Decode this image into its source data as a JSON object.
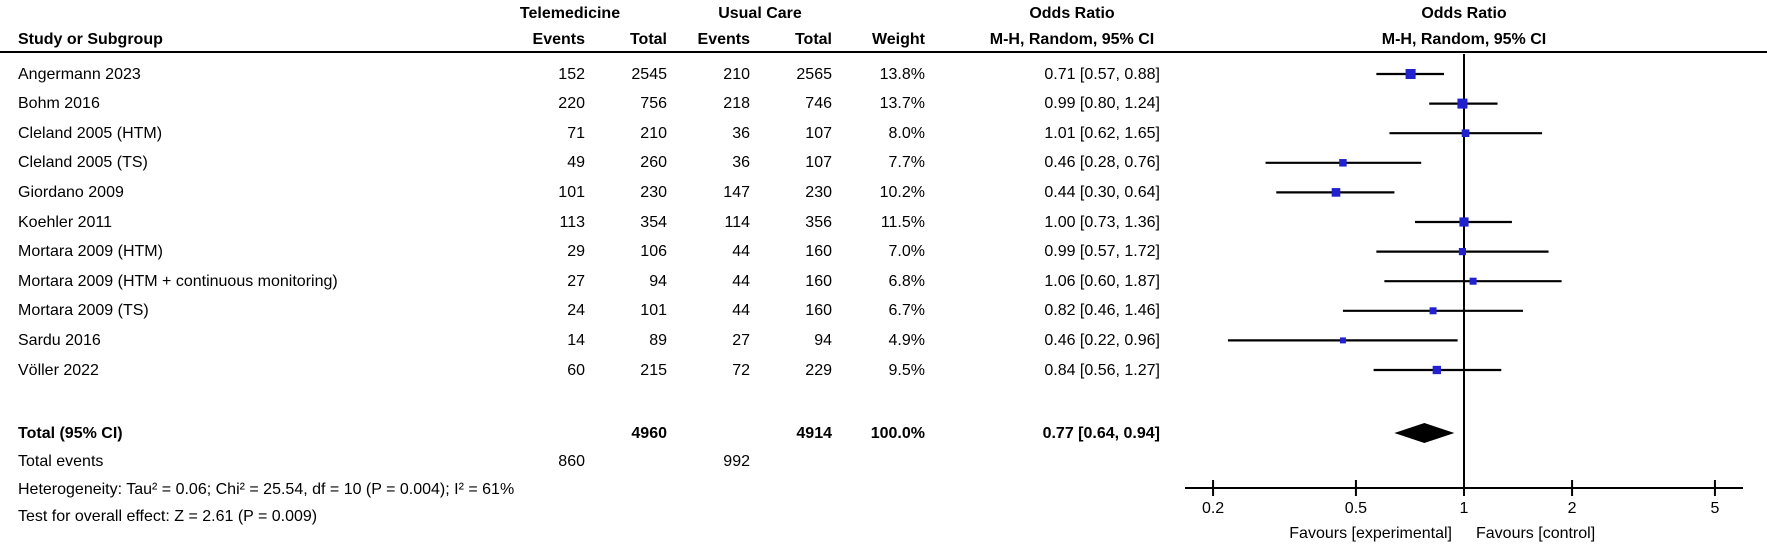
{
  "header": {
    "group1": "Telemedicine",
    "group2": "Usual Care",
    "study_col": "Study or Subgroup",
    "events": "Events",
    "total": "Total",
    "weight": "Weight",
    "or_title": "Odds Ratio",
    "or_sub": "M-H, Random, 95% CI"
  },
  "chart_data": {
    "type": "forest",
    "effect_measure": "Odds Ratio",
    "method": "M-H, Random, 95% CI",
    "x_axis": {
      "scale": "log",
      "ticks": [
        0.2,
        0.5,
        1,
        2,
        5
      ],
      "favours_left": "Favours [experimental]",
      "favours_right": "Favours [control]"
    },
    "studies": [
      {
        "name": "Angermann 2023",
        "e1": "152",
        "t1": "2545",
        "e2": "210",
        "t2": "2565",
        "weight": "13.8%",
        "weight_pct": 13.8,
        "or": 0.71,
        "lo": 0.57,
        "hi": 0.88,
        "ci_text": "0.71 [0.57, 0.88]"
      },
      {
        "name": "Bohm 2016",
        "e1": "220",
        "t1": "756",
        "e2": "218",
        "t2": "746",
        "weight": "13.7%",
        "weight_pct": 13.7,
        "or": 0.99,
        "lo": 0.8,
        "hi": 1.24,
        "ci_text": "0.99 [0.80, 1.24]"
      },
      {
        "name": "Cleland 2005 (HTM)",
        "e1": "71",
        "t1": "210",
        "e2": "36",
        "t2": "107",
        "weight": "8.0%",
        "weight_pct": 8.0,
        "or": 1.01,
        "lo": 0.62,
        "hi": 1.65,
        "ci_text": "1.01 [0.62, 1.65]"
      },
      {
        "name": "Cleland 2005 (TS)",
        "e1": "49",
        "t1": "260",
        "e2": "36",
        "t2": "107",
        "weight": "7.7%",
        "weight_pct": 7.7,
        "or": 0.46,
        "lo": 0.28,
        "hi": 0.76,
        "ci_text": "0.46 [0.28, 0.76]"
      },
      {
        "name": "Giordano 2009",
        "e1": "101",
        "t1": "230",
        "e2": "147",
        "t2": "230",
        "weight": "10.2%",
        "weight_pct": 10.2,
        "or": 0.44,
        "lo": 0.3,
        "hi": 0.64,
        "ci_text": "0.44 [0.30, 0.64]"
      },
      {
        "name": "Koehler 2011",
        "e1": "113",
        "t1": "354",
        "e2": "114",
        "t2": "356",
        "weight": "11.5%",
        "weight_pct": 11.5,
        "or": 1.0,
        "lo": 0.73,
        "hi": 1.36,
        "ci_text": "1.00 [0.73, 1.36]"
      },
      {
        "name": "Mortara 2009 (HTM)",
        "e1": "29",
        "t1": "106",
        "e2": "44",
        "t2": "160",
        "weight": "7.0%",
        "weight_pct": 7.0,
        "or": 0.99,
        "lo": 0.57,
        "hi": 1.72,
        "ci_text": "0.99 [0.57, 1.72]"
      },
      {
        "name": "Mortara 2009 (HTM + continuous monitoring)",
        "e1": "27",
        "t1": "94",
        "e2": "44",
        "t2": "160",
        "weight": "6.8%",
        "weight_pct": 6.8,
        "or": 1.06,
        "lo": 0.6,
        "hi": 1.87,
        "ci_text": "1.06 [0.60, 1.87]"
      },
      {
        "name": "Mortara 2009 (TS)",
        "e1": "24",
        "t1": "101",
        "e2": "44",
        "t2": "160",
        "weight": "6.7%",
        "weight_pct": 6.7,
        "or": 0.82,
        "lo": 0.46,
        "hi": 1.46,
        "ci_text": "0.82 [0.46, 1.46]"
      },
      {
        "name": "Sardu 2016",
        "e1": "14",
        "t1": "89",
        "e2": "27",
        "t2": "94",
        "weight": "4.9%",
        "weight_pct": 4.9,
        "or": 0.46,
        "lo": 0.22,
        "hi": 0.96,
        "ci_text": "0.46 [0.22, 0.96]"
      },
      {
        "name": "Völler 2022",
        "e1": "60",
        "t1": "215",
        "e2": "72",
        "t2": "229",
        "weight": "9.5%",
        "weight_pct": 9.5,
        "or": 0.84,
        "lo": 0.56,
        "hi": 1.27,
        "ci_text": "0.84 [0.56, 1.27]"
      }
    ],
    "total": {
      "label": "Total (95% CI)",
      "t1": "4960",
      "t2": "4914",
      "weight": "100.0%",
      "or": 0.77,
      "lo": 0.64,
      "hi": 0.94,
      "ci_text": "0.77 [0.64, 0.94]"
    },
    "total_events": {
      "label": "Total events",
      "e1": "860",
      "e2": "992"
    },
    "heterogeneity": "Heterogeneity: Tau² = 0.06; Chi² = 25.54, df = 10 (P = 0.004); I² = 61%",
    "overall_effect": "Test for overall effect: Z = 2.61 (P = 0.009)"
  },
  "colors": {
    "marker": "#2121cd",
    "line": "#000000",
    "diamond": "#000000",
    "text": "#000000"
  }
}
